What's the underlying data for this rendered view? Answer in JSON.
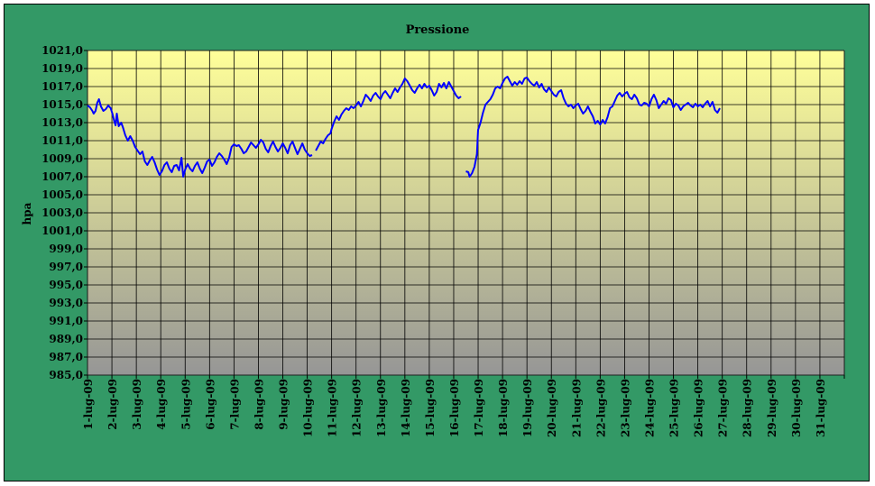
{
  "chart_data": {
    "type": "line",
    "title": "Pressione",
    "xlabel": "",
    "ylabel": "hpa",
    "ylim": [
      985,
      1021
    ],
    "ytick_step": 2,
    "ytick_decimals": 1,
    "x_categories": [
      "1-lug-09",
      "2-lug-09",
      "3-lug-09",
      "4-lug-09",
      "5-lug-09",
      "6-lug-09",
      "7-lug-09",
      "8-lug-09",
      "9-lug-09",
      "10-lug-09",
      "11-lug-09",
      "12-lug-09",
      "13-lug-09",
      "14-lug-09",
      "15-lug-09",
      "16-lug-09",
      "17-lug-09",
      "18-lug-09",
      "19-lug-09",
      "20-lug-09",
      "21-lug-09",
      "22-lug-09",
      "23-lug-09",
      "24-lug-09",
      "25-lug-09",
      "26-lug-09",
      "27-lug-09",
      "28-lug-09",
      "29-lug-09",
      "30-lug-09",
      "31-lug-09"
    ],
    "grid": true,
    "background_gradient": [
      "#FFFF99",
      "#969696"
    ],
    "line_color": "#0000FF",
    "series": [
      {
        "segments": [
          [
            [
              0.0,
              1014.9
            ],
            [
              0.1,
              1014.7
            ],
            [
              0.2,
              1014.3
            ],
            [
              0.25,
              1014.0
            ],
            [
              0.33,
              1014.3
            ],
            [
              0.4,
              1015.2
            ],
            [
              0.47,
              1015.6
            ],
            [
              0.55,
              1014.8
            ],
            [
              0.65,
              1014.3
            ],
            [
              0.75,
              1014.5
            ],
            [
              0.85,
              1014.9
            ],
            [
              0.95,
              1014.6
            ],
            [
              1.02,
              1014.0
            ],
            [
              1.1,
              1013.1
            ],
            [
              1.15,
              1012.7
            ],
            [
              1.2,
              1014.0
            ],
            [
              1.28,
              1012.6
            ],
            [
              1.38,
              1013.0
            ],
            [
              1.45,
              1012.5
            ],
            [
              1.55,
              1011.6
            ],
            [
              1.65,
              1011.0
            ],
            [
              1.75,
              1011.5
            ],
            [
              1.85,
              1011.0
            ],
            [
              1.95,
              1010.3
            ],
            [
              2.05,
              1009.9
            ],
            [
              2.15,
              1009.5
            ],
            [
              2.25,
              1009.8
            ],
            [
              2.35,
              1008.7
            ],
            [
              2.45,
              1008.3
            ],
            [
              2.55,
              1008.8
            ],
            [
              2.65,
              1009.2
            ],
            [
              2.75,
              1008.6
            ],
            [
              2.85,
              1007.8
            ],
            [
              2.95,
              1007.2
            ],
            [
              3.05,
              1007.6
            ],
            [
              3.15,
              1008.3
            ],
            [
              3.25,
              1008.6
            ],
            [
              3.35,
              1007.9
            ],
            [
              3.45,
              1007.5
            ],
            [
              3.55,
              1008.2
            ],
            [
              3.65,
              1008.3
            ],
            [
              3.75,
              1007.7
            ],
            [
              3.85,
              1009.1
            ],
            [
              3.92,
              1007.0
            ],
            [
              4.0,
              1007.8
            ],
            [
              4.1,
              1008.4
            ],
            [
              4.2,
              1007.9
            ],
            [
              4.3,
              1007.6
            ],
            [
              4.4,
              1008.2
            ],
            [
              4.5,
              1008.6
            ],
            [
              4.6,
              1007.9
            ],
            [
              4.7,
              1007.4
            ],
            [
              4.8,
              1008.0
            ],
            [
              4.9,
              1008.7
            ],
            [
              5.0,
              1008.9
            ],
            [
              5.1,
              1008.2
            ],
            [
              5.2,
              1008.6
            ],
            [
              5.3,
              1009.2
            ],
            [
              5.4,
              1009.6
            ],
            [
              5.5,
              1009.3
            ],
            [
              5.6,
              1008.9
            ],
            [
              5.7,
              1008.4
            ],
            [
              5.8,
              1009.1
            ],
            [
              5.9,
              1010.3
            ],
            [
              6.0,
              1010.6
            ],
            [
              6.1,
              1010.4
            ],
            [
              6.2,
              1010.5
            ],
            [
              6.3,
              1010.1
            ],
            [
              6.4,
              1009.6
            ],
            [
              6.5,
              1009.8
            ],
            [
              6.6,
              1010.3
            ],
            [
              6.7,
              1010.8
            ],
            [
              6.8,
              1010.5
            ],
            [
              6.9,
              1010.2
            ],
            [
              7.0,
              1010.6
            ],
            [
              7.1,
              1011.1
            ],
            [
              7.2,
              1010.8
            ],
            [
              7.3,
              1010.1
            ],
            [
              7.4,
              1009.7
            ],
            [
              7.5,
              1010.4
            ],
            [
              7.6,
              1010.9
            ],
            [
              7.7,
              1010.3
            ],
            [
              7.8,
              1009.8
            ],
            [
              7.9,
              1010.2
            ],
            [
              8.0,
              1010.7
            ],
            [
              8.1,
              1010.2
            ],
            [
              8.2,
              1009.6
            ],
            [
              8.3,
              1010.5
            ],
            [
              8.4,
              1010.9
            ],
            [
              8.5,
              1010.2
            ],
            [
              8.6,
              1009.5
            ],
            [
              8.7,
              1010.1
            ],
            [
              8.8,
              1010.7
            ],
            [
              8.9,
              1010.0
            ],
            [
              9.0,
              1009.6
            ],
            [
              9.1,
              1009.3
            ],
            [
              9.2,
              1009.4
            ]
          ],
          [
            [
              9.35,
              1009.9
            ],
            [
              9.45,
              1010.4
            ],
            [
              9.55,
              1010.9
            ],
            [
              9.65,
              1010.7
            ],
            [
              9.75,
              1011.2
            ],
            [
              9.85,
              1011.6
            ],
            [
              9.95,
              1011.8
            ],
            [
              10.0,
              1012.3
            ],
            [
              10.1,
              1013.1
            ],
            [
              10.2,
              1013.7
            ],
            [
              10.3,
              1013.3
            ],
            [
              10.4,
              1013.9
            ],
            [
              10.5,
              1014.3
            ],
            [
              10.6,
              1014.6
            ],
            [
              10.7,
              1014.4
            ],
            [
              10.8,
              1014.8
            ],
            [
              10.9,
              1014.6
            ],
            [
              11.0,
              1014.9
            ],
            [
              11.1,
              1015.3
            ],
            [
              11.2,
              1014.8
            ],
            [
              11.3,
              1015.4
            ],
            [
              11.4,
              1016.1
            ],
            [
              11.5,
              1015.8
            ],
            [
              11.6,
              1015.4
            ],
            [
              11.7,
              1016.0
            ],
            [
              11.8,
              1016.3
            ],
            [
              11.9,
              1015.9
            ],
            [
              12.0,
              1015.6
            ],
            [
              12.1,
              1016.2
            ],
            [
              12.2,
              1016.5
            ],
            [
              12.3,
              1016.1
            ],
            [
              12.4,
              1015.7
            ],
            [
              12.5,
              1016.3
            ],
            [
              12.6,
              1016.8
            ],
            [
              12.7,
              1016.4
            ],
            [
              12.8,
              1016.9
            ],
            [
              12.9,
              1017.3
            ],
            [
              13.0,
              1017.9
            ],
            [
              13.1,
              1017.6
            ],
            [
              13.2,
              1017.1
            ],
            [
              13.3,
              1016.6
            ],
            [
              13.4,
              1016.3
            ],
            [
              13.5,
              1016.8
            ],
            [
              13.6,
              1017.2
            ],
            [
              13.7,
              1016.8
            ],
            [
              13.8,
              1017.3
            ],
            [
              13.9,
              1016.9
            ],
            [
              14.0,
              1017.1
            ],
            [
              14.1,
              1016.6
            ],
            [
              14.2,
              1016.0
            ],
            [
              14.3,
              1016.4
            ],
            [
              14.4,
              1017.3
            ],
            [
              14.5,
              1016.9
            ],
            [
              14.6,
              1017.4
            ],
            [
              14.7,
              1016.8
            ],
            [
              14.8,
              1017.5
            ],
            [
              14.9,
              1017.0
            ],
            [
              15.0,
              1016.5
            ],
            [
              15.1,
              1016.0
            ],
            [
              15.2,
              1015.7
            ],
            [
              15.3,
              1015.9
            ]
          ],
          [
            [
              15.5,
              1007.6
            ],
            [
              15.6,
              1007.5
            ],
            [
              15.65,
              1007.0
            ],
            [
              15.75,
              1007.4
            ],
            [
              15.85,
              1008.1
            ],
            [
              15.95,
              1009.5
            ],
            [
              16.0,
              1012.2
            ],
            [
              16.1,
              1013.0
            ],
            [
              16.2,
              1014.1
            ],
            [
              16.3,
              1015.0
            ],
            [
              16.4,
              1015.3
            ],
            [
              16.5,
              1015.6
            ],
            [
              16.6,
              1016.1
            ],
            [
              16.7,
              1016.8
            ],
            [
              16.8,
              1017.0
            ],
            [
              16.9,
              1016.8
            ],
            [
              17.0,
              1017.4
            ],
            [
              17.1,
              1017.9
            ],
            [
              17.2,
              1018.1
            ],
            [
              17.3,
              1017.6
            ],
            [
              17.4,
              1017.1
            ],
            [
              17.5,
              1017.5
            ],
            [
              17.6,
              1017.2
            ],
            [
              17.7,
              1017.6
            ],
            [
              17.8,
              1017.3
            ],
            [
              17.9,
              1017.9
            ],
            [
              18.0,
              1018.0
            ],
            [
              18.1,
              1017.6
            ],
            [
              18.2,
              1017.3
            ],
            [
              18.3,
              1017.1
            ],
            [
              18.4,
              1017.5
            ],
            [
              18.5,
              1016.9
            ],
            [
              18.6,
              1017.3
            ],
            [
              18.7,
              1016.7
            ],
            [
              18.8,
              1016.4
            ],
            [
              18.9,
              1016.9
            ],
            [
              19.0,
              1016.5
            ],
            [
              19.1,
              1016.1
            ],
            [
              19.2,
              1015.9
            ],
            [
              19.3,
              1016.4
            ],
            [
              19.4,
              1016.6
            ],
            [
              19.5,
              1015.7
            ],
            [
              19.6,
              1015.1
            ],
            [
              19.7,
              1014.8
            ],
            [
              19.8,
              1015.0
            ],
            [
              19.9,
              1014.6
            ],
            [
              20.0,
              1014.9
            ],
            [
              20.1,
              1015.1
            ],
            [
              20.2,
              1014.5
            ],
            [
              20.3,
              1014.0
            ],
            [
              20.4,
              1014.3
            ],
            [
              20.5,
              1014.8
            ],
            [
              20.6,
              1014.2
            ],
            [
              20.7,
              1013.7
            ],
            [
              20.8,
              1012.9
            ],
            [
              20.9,
              1013.2
            ],
            [
              21.0,
              1012.8
            ],
            [
              21.1,
              1013.3
            ],
            [
              21.2,
              1012.9
            ],
            [
              21.3,
              1013.6
            ],
            [
              21.4,
              1014.6
            ],
            [
              21.5,
              1014.8
            ],
            [
              21.6,
              1015.4
            ],
            [
              21.7,
              1016.0
            ],
            [
              21.8,
              1016.3
            ],
            [
              21.9,
              1015.9
            ],
            [
              22.0,
              1016.2
            ],
            [
              22.1,
              1016.4
            ],
            [
              22.2,
              1015.8
            ],
            [
              22.3,
              1015.6
            ],
            [
              22.4,
              1016.1
            ],
            [
              22.5,
              1015.7
            ],
            [
              22.6,
              1015.0
            ],
            [
              22.7,
              1014.9
            ],
            [
              22.8,
              1015.2
            ],
            [
              22.9,
              1015.1
            ],
            [
              23.0,
              1014.8
            ],
            [
              23.1,
              1015.6
            ],
            [
              23.2,
              1016.1
            ],
            [
              23.3,
              1015.5
            ],
            [
              23.4,
              1014.6
            ],
            [
              23.5,
              1015.0
            ],
            [
              23.6,
              1015.4
            ],
            [
              23.7,
              1015.1
            ],
            [
              23.8,
              1015.7
            ],
            [
              23.9,
              1015.5
            ],
            [
              24.0,
              1014.7
            ],
            [
              24.1,
              1015.1
            ],
            [
              24.2,
              1014.9
            ],
            [
              24.3,
              1014.4
            ],
            [
              24.4,
              1014.8
            ],
            [
              24.5,
              1015.0
            ],
            [
              24.6,
              1015.2
            ],
            [
              24.7,
              1014.9
            ],
            [
              24.8,
              1014.7
            ],
            [
              24.9,
              1015.1
            ],
            [
              25.0,
              1014.8
            ],
            [
              25.1,
              1015.0
            ],
            [
              25.2,
              1014.7
            ],
            [
              25.3,
              1015.1
            ],
            [
              25.4,
              1015.4
            ],
            [
              25.5,
              1014.8
            ],
            [
              25.6,
              1015.3
            ],
            [
              25.7,
              1014.4
            ],
            [
              25.8,
              1014.1
            ],
            [
              25.9,
              1014.6
            ]
          ]
        ]
      }
    ]
  }
}
